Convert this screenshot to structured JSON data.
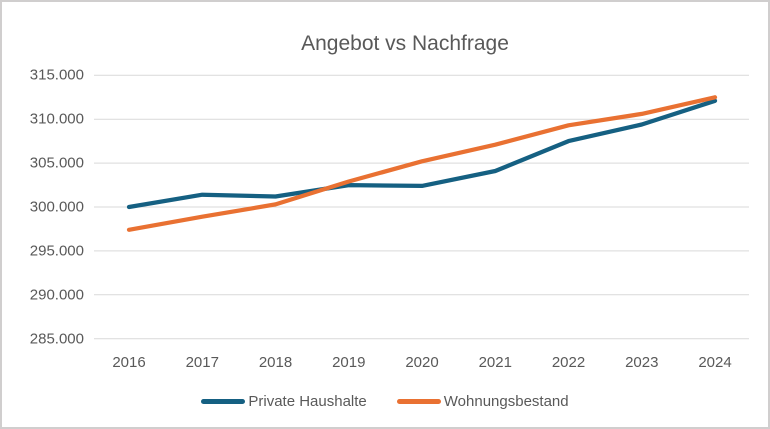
{
  "frame": {
    "background_color": "#FFFFFF",
    "border_color": "#D0CECE"
  },
  "chart_data": {
    "type": "line",
    "title": "Angebot vs Nachfrage",
    "categories": [
      "2016",
      "2017",
      "2018",
      "2019",
      "2020",
      "2021",
      "2022",
      "2023",
      "2024"
    ],
    "series": [
      {
        "name": "Private Haushalte",
        "color": "#156082",
        "values": [
          300000,
          301400,
          301200,
          302500,
          302400,
          304100,
          307500,
          309400,
          312100
        ]
      },
      {
        "name": "Wohnungsbestand",
        "color": "#E97132",
        "values": [
          297400,
          298900,
          300300,
          302900,
          305200,
          307100,
          309300,
          310600,
          312500
        ]
      }
    ],
    "xlabel": "",
    "ylabel": "",
    "y_axis": {
      "min": 285000,
      "max": 315000,
      "step": 5000,
      "tick_labels_top_to_bottom": [
        "315.000",
        "310.000",
        "305.000",
        "300.000",
        "295.000",
        "290.000",
        "285.000"
      ]
    },
    "grid": true,
    "gridline_color": "#D9D9D9",
    "tick_label_color": "#595959",
    "title_color": "#595959",
    "legend_position": "bottom",
    "line_width": 4.25
  }
}
